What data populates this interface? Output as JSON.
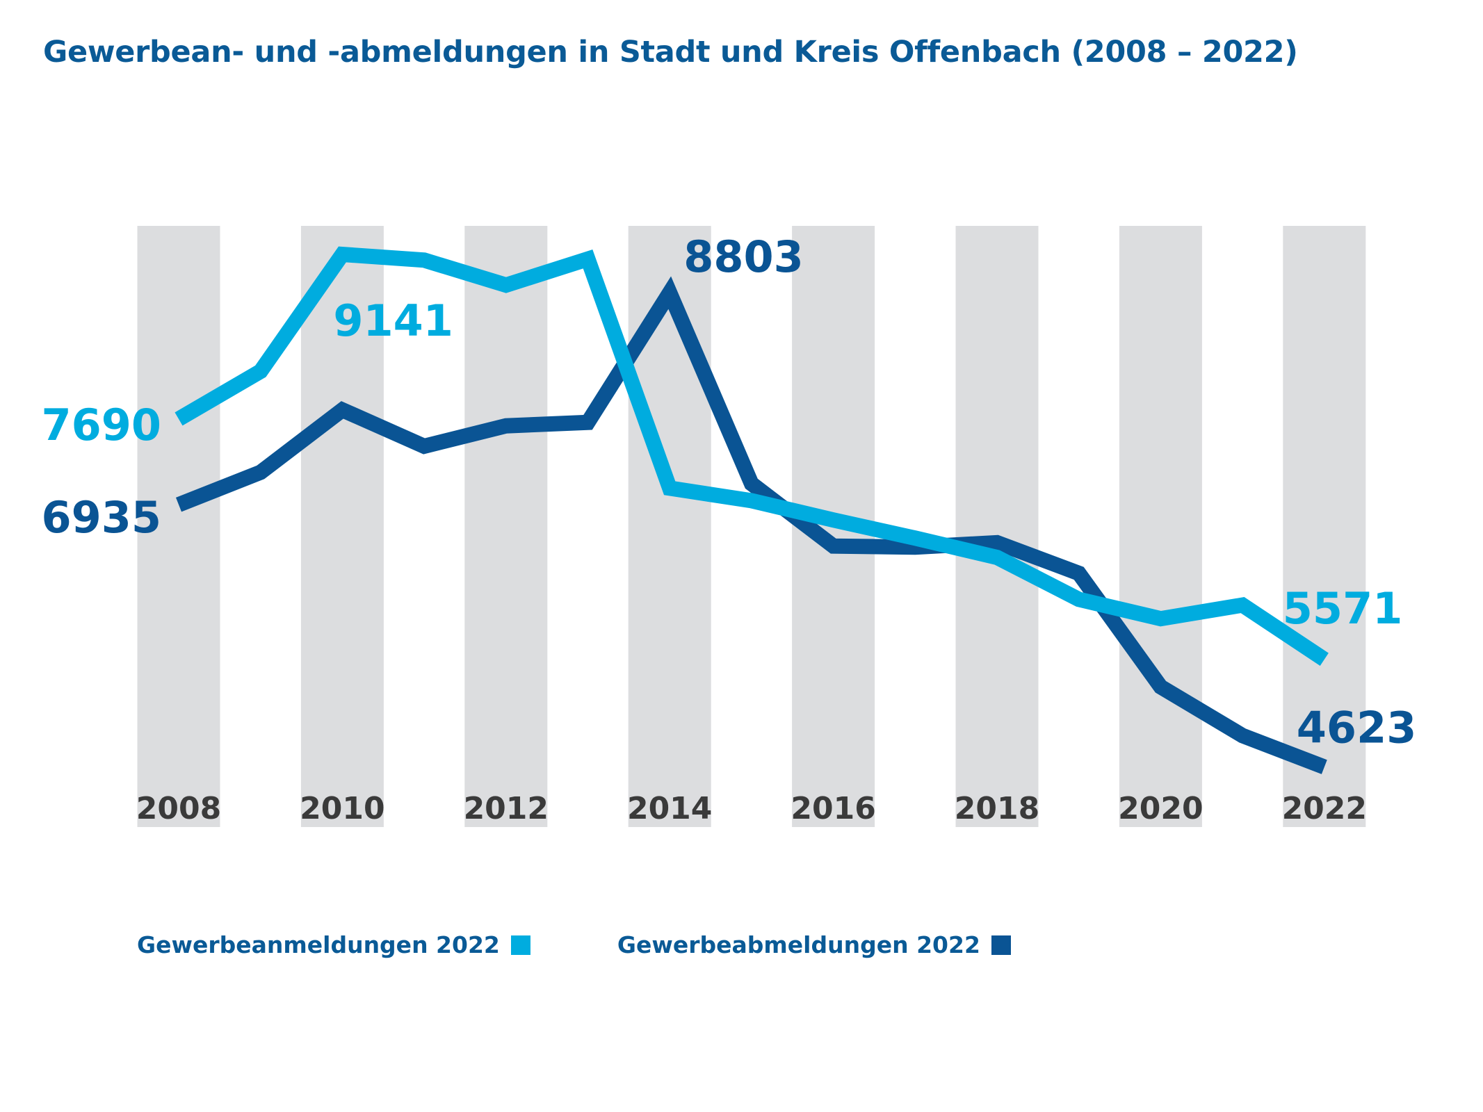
{
  "chart_data": {
    "type": "line",
    "title": "Gewerbean- und -abmeldungen in Stadt und Kreis Offenbach (2008 – 2022)",
    "x": [
      2008,
      2009,
      2010,
      2011,
      2012,
      2013,
      2014,
      2015,
      2016,
      2017,
      2018,
      2019,
      2020,
      2021,
      2022
    ],
    "tick_labels": [
      "2008",
      "2010",
      "2012",
      "2014",
      "2016",
      "2018",
      "2020",
      "2022"
    ],
    "ylim": [
      4400,
      9300
    ],
    "grid": false,
    "legend_position": "bottom-left",
    "series": [
      {
        "name": "Gewerbeanmeldungen 2022",
        "color": "#00acdf",
        "values": [
          7690,
          8110,
          9141,
          9090,
          8870,
          9100,
          7080,
          6970,
          6800,
          6640,
          6470,
          6100,
          5930,
          6050,
          5571
        ]
      },
      {
        "name": "Gewerbeabmeldungen 2022",
        "color": "#0a5494",
        "values": [
          6935,
          7220,
          7770,
          7450,
          7630,
          7660,
          8803,
          7120,
          6570,
          6560,
          6600,
          6330,
          5330,
          4900,
          4623
        ]
      }
    ],
    "data_labels": [
      {
        "series": 0,
        "x": 2008,
        "text": "7690"
      },
      {
        "series": 0,
        "x": 2010,
        "text": "9141"
      },
      {
        "series": 0,
        "x": 2022,
        "text": "5571"
      },
      {
        "series": 1,
        "x": 2008,
        "text": "6935"
      },
      {
        "series": 1,
        "x": 2014,
        "text": "8803"
      },
      {
        "series": 1,
        "x": 2022,
        "text": "4623"
      }
    ],
    "colors": {
      "stripe": "#dcdddf",
      "tick_text": "#3a3a3a",
      "title": "#0a5a96"
    }
  }
}
